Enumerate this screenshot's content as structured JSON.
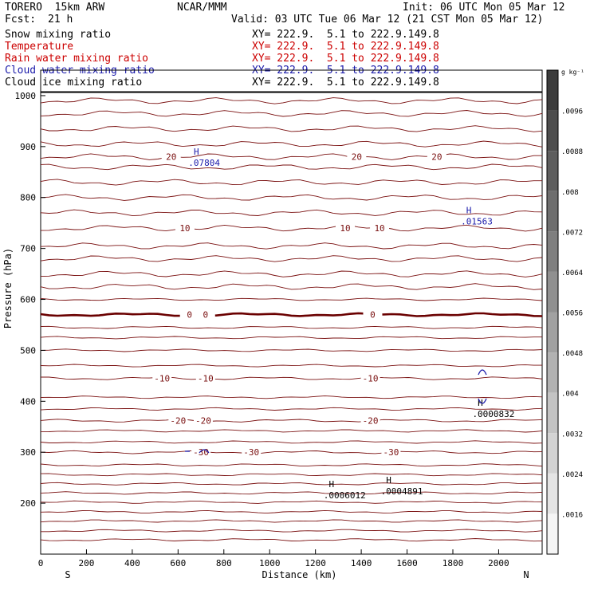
{
  "header": {
    "model": "TORERO  15km ARW",
    "center": "NCAR/MMM",
    "init": "Init: 06 UTC Mon 05 Mar 12",
    "fcst_label": "Fcst:",
    "fcst_value": "21 h",
    "valid": "Valid: 03 UTC Tue 06 Mar 12 (21 CST Mon 05 Mar 12)"
  },
  "fields": [
    {
      "label": "Snow mixing ratio",
      "xy": "XY= 222.9.  5.1 to 222.9.149.8",
      "color": "#000000"
    },
    {
      "label": "Temperature",
      "xy": "XY= 222.9.  5.1 to 222.9.149.8",
      "color": "#cc0000"
    },
    {
      "label": "Rain water mixing ratio",
      "xy": "XY= 222.9.  5.1 to 222.9.149.8",
      "color": "#cc0000"
    },
    {
      "label": "Cloud water mixing ratio",
      "xy": "XY= 222.9.  5.1 to 222.9.149.8",
      "color": "#1a1aaa"
    },
    {
      "label": "Cloud ice mixing ratio",
      "xy": "XY= 222.9.  5.1 to 222.9.149.8",
      "color": "#000000"
    }
  ],
  "chart_data": {
    "type": "cross-section",
    "xlabel": "Distance (km)",
    "ylabel": "Pressure (hPa)",
    "x_ticks": [
      0,
      200,
      400,
      600,
      800,
      1000,
      1200,
      1400,
      1600,
      1800,
      2000
    ],
    "y_ticks": [
      200,
      300,
      400,
      500,
      600,
      700,
      800,
      900,
      1000
    ],
    "xlim": [
      0,
      2190
    ],
    "ylim": [
      1050,
      100
    ],
    "direction_left": "S",
    "direction_right": "N",
    "temperature_contours": [
      {
        "label": "-30",
        "p": 300,
        "labels_at": [
          700,
          920,
          1530
        ]
      },
      {
        "label": "-20",
        "p": 362,
        "labels_at": [
          600,
          710,
          1440
        ]
      },
      {
        "label": "-10",
        "p": 445,
        "labels_at": [
          530,
          720,
          1440
        ]
      },
      {
        "label": "0",
        "p": 570,
        "labels_at": [
          650,
          720,
          1450
        ]
      },
      {
        "label": "10",
        "p": 740,
        "labels_at": [
          630,
          1330,
          1480
        ]
      },
      {
        "label": "20",
        "p": 880,
        "labels_at": [
          570,
          1380,
          1730
        ]
      }
    ],
    "extrema": [
      {
        "mark": "H",
        "value": ".0006012",
        "x": 1270,
        "p": 222,
        "color": "#000000"
      },
      {
        "mark": "H",
        "value": ".0004891",
        "x": 1520,
        "p": 230,
        "color": "#000000"
      },
      {
        "mark": "H",
        "value": ".0000832",
        "x": 1920,
        "p": 382,
        "color": "#000000"
      },
      {
        "mark": "H",
        "value": ".01563",
        "x": 1870,
        "p": 760,
        "color": "#1a1aaa"
      },
      {
        "mark": "H",
        "value": ".07804",
        "x": 680,
        "p": 875,
        "color": "#1a1aaa"
      }
    ],
    "colorbar": {
      "units": "g kg⁻¹",
      "ticks": [
        ".0096",
        ".0088",
        ".008",
        ".0072",
        ".0064",
        ".0056",
        ".0048",
        ".004",
        ".0032",
        ".0024",
        ".0016"
      ]
    }
  }
}
